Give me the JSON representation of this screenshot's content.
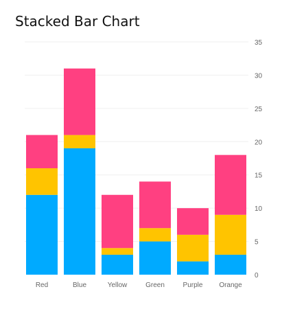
{
  "chart_data": {
    "type": "bar",
    "stacked": true,
    "title": "Stacked Bar Chart",
    "xlabel": "",
    "ylabel": "",
    "categories": [
      "Red",
      "Blue",
      "Yellow",
      "Green",
      "Purple",
      "Orange"
    ],
    "series": [
      {
        "values": [
          12,
          19,
          3,
          5,
          2,
          3
        ],
        "color": "#00aaff"
      },
      {
        "values": [
          4,
          2,
          1,
          2,
          4,
          6
        ],
        "color": "#ffc400"
      },
      {
        "values": [
          5,
          10,
          8,
          7,
          4,
          9
        ],
        "color": "#ff4081"
      }
    ],
    "ylim": [
      0,
      35
    ],
    "yticks": [
      "0",
      "5",
      "10",
      "15",
      "20",
      "25",
      "30",
      "35"
    ],
    "y_axis_position": "right",
    "grid": true,
    "legend": "none"
  }
}
